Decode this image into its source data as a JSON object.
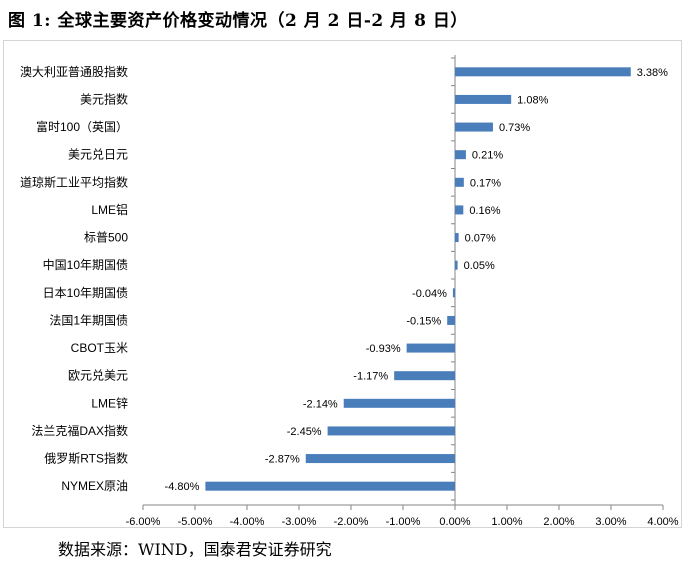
{
  "title": {
    "prefix": "图 1:",
    "text": "全球主要资产价格变动情况（2 月 2 日-2 月 8 日）"
  },
  "source": "数据来源：WIND，国泰君安证券研究",
  "chart_data": {
    "type": "bar",
    "orientation": "horizontal",
    "title": "",
    "xlabel": "",
    "ylabel": "",
    "xlim": [
      -6,
      4
    ],
    "x_ticks": [
      -6,
      -5,
      -4,
      -3,
      -2,
      -1,
      0,
      1,
      2,
      3,
      4
    ],
    "x_tick_labels": [
      "-6.00%",
      "-5.00%",
      "-4.00%",
      "-3.00%",
      "-2.00%",
      "-1.00%",
      "0.00%",
      "1.00%",
      "2.00%",
      "3.00%",
      "4.00%"
    ],
    "grid": false,
    "bar_color": "#4a7ebb",
    "categories": [
      "澳大利亚普通股指数",
      "美元指数",
      "富时100（英国）",
      "美元兑日元",
      "道琼斯工业平均指数",
      "LME铝",
      "标普500",
      "中国10年期国债",
      "日本10年期国债",
      "法国1年期国债",
      "CBOT玉米",
      "欧元兑美元",
      "LME锌",
      "法兰克福DAX指数",
      "俄罗斯RTS指数",
      "NYMEX原油"
    ],
    "values": [
      3.38,
      1.08,
      0.73,
      0.21,
      0.17,
      0.16,
      0.07,
      0.05,
      -0.04,
      -0.15,
      -0.93,
      -1.17,
      -2.14,
      -2.45,
      -2.87,
      -4.8
    ],
    "value_labels": [
      "3.38%",
      "1.08%",
      "0.73%",
      "0.21%",
      "0.17%",
      "0.16%",
      "0.07%",
      "0.05%",
      "-0.04%",
      "-0.15%",
      "-0.93%",
      "-1.17%",
      "-2.14%",
      "-2.45%",
      "-2.87%",
      "-4.80%"
    ]
  }
}
